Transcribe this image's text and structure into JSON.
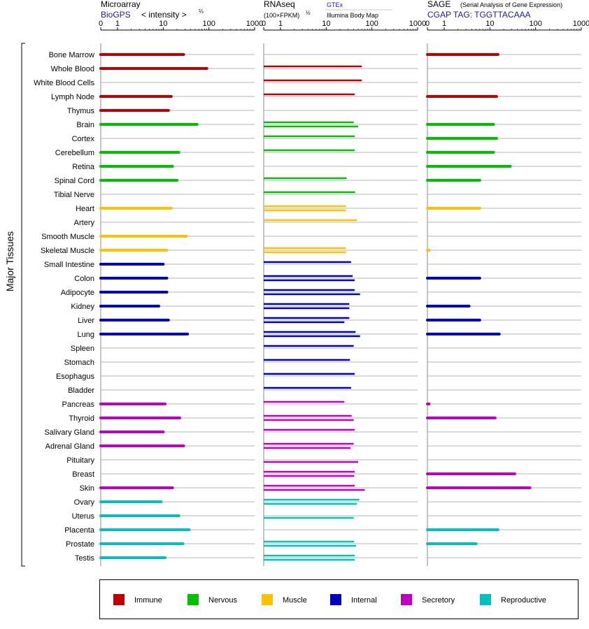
{
  "chart_data": {
    "type": "bar",
    "ylabel": "Major Tissues",
    "scale": "mixed (0 then log 1–1000)",
    "tick_labels": [
      "0",
      "1",
      "10",
      "100",
      "1000"
    ],
    "categories": [
      "Bone Marrow",
      "Whole Blood",
      "White Blood Cells",
      "Lymph Node",
      "Thymus",
      "Brain",
      "Cortex",
      "Cerebellum",
      "Retina",
      "Spinal Cord",
      "Tibial Nerve",
      "Heart",
      "Artery",
      "Smooth Muscle",
      "Skeletal Muscle",
      "Small Intestine",
      "Colon",
      "Adipocyte",
      "Kidney",
      "Liver",
      "Lung",
      "Spleen",
      "Stomach",
      "Esophagus",
      "Bladder",
      "Pancreas",
      "Thyroid",
      "Salivary Gland",
      "Adrenal Gland",
      "Pituitary",
      "Breast",
      "Skin",
      "Ovary",
      "Uterus",
      "Placenta",
      "Prostate",
      "Testis"
    ],
    "category_groups": [
      "Immune",
      "Immune",
      "Immune",
      "Immune",
      "Immune",
      "Nervous",
      "Nervous",
      "Nervous",
      "Nervous",
      "Nervous",
      "Nervous",
      "Muscle",
      "Muscle",
      "Muscle",
      "Muscle",
      "Internal",
      "Internal",
      "Internal",
      "Internal",
      "Internal",
      "Internal",
      "Internal",
      "Internal",
      "Internal",
      "Internal",
      "Secretory",
      "Secretory",
      "Secretory",
      "Secretory",
      "Secretory",
      "Secretory",
      "Secretory",
      "Reproductive",
      "Reproductive",
      "Reproductive",
      "Reproductive",
      "Reproductive"
    ],
    "legend": [
      {
        "name": "Immune",
        "color": "#c00000"
      },
      {
        "name": "Nervous",
        "color": "#00c000"
      },
      {
        "name": "Muscle",
        "color": "#ffc000"
      },
      {
        "name": "Internal",
        "color": "#0000c0"
      },
      {
        "name": "Secretory",
        "color": "#c000c0"
      },
      {
        "name": "Reproductive",
        "color": "#00c0c0"
      }
    ],
    "panels": [
      {
        "title": "Microarray",
        "subtitle_link": "BioGPS",
        "subtitle_note": "< intensity >",
        "exponent": "⅔",
        "values": [
          28,
          90,
          null,
          15,
          13,
          55,
          null,
          22,
          16,
          20,
          null,
          15,
          null,
          32,
          12,
          10,
          12,
          12,
          8,
          13,
          34,
          null,
          null,
          null,
          null,
          11,
          23,
          10,
          28,
          null,
          null,
          16,
          9,
          22,
          37,
          27,
          11
        ]
      },
      {
        "title": "RNAseq",
        "scale_note": "(100×FPKM)",
        "exponent": "½",
        "sources": [
          "GTEx",
          "Illumina Body Map"
        ],
        "series": [
          {
            "name": "GTEx",
            "values": [
              null,
              60,
              60,
              42,
              null,
              40,
              42,
              42,
              null,
              28,
              43,
              27,
              47,
              null,
              27,
              35,
              38,
              42,
              32,
              32,
              44,
              40,
              33,
              42,
              35,
              25,
              36,
              42,
              40,
              null,
              42,
              42,
              53,
              null,
              null,
              41,
              42
            ]
          },
          {
            "name": "Illumina Body Map",
            "values": [
              null,
              null,
              null,
              null,
              null,
              50,
              null,
              null,
              null,
              null,
              null,
              27,
              null,
              null,
              27,
              null,
              42,
              55,
              32,
              25,
              55,
              null,
              null,
              null,
              null,
              null,
              40,
              null,
              34,
              50,
              41,
              70,
              47,
              40,
              null,
              45,
              42
            ]
          }
        ]
      },
      {
        "title": "SAGE",
        "title_note": "(Serial Analysis of Gene Expression)",
        "tag": "CGAP TAG: TGGTTACAAA",
        "values": [
          15,
          null,
          null,
          14,
          null,
          12,
          14,
          12,
          28,
          6,
          null,
          6,
          null,
          null,
          0.1,
          null,
          6,
          null,
          3.5,
          6,
          16,
          null,
          null,
          null,
          null,
          0.1,
          13,
          null,
          null,
          null,
          35,
          75,
          null,
          null,
          15,
          5,
          null
        ]
      }
    ]
  }
}
